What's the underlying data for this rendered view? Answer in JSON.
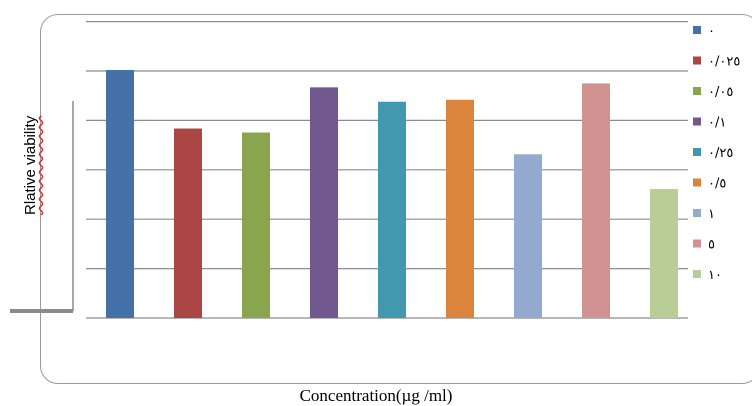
{
  "chart_data": {
    "type": "bar",
    "title": "",
    "xlabel": "Concentration(µg /ml)",
    "ylabel": "Rlative viability",
    "ylim": [
      0,
      5
    ],
    "grid": true,
    "legend_position": "right",
    "categories": [
      "٠",
      "٠/٠٢٥",
      "٠/٠٥",
      "٠/١",
      "٠/٢٥",
      "٠/٥",
      "١",
      "٥",
      "١٠"
    ],
    "values": [
      5.0,
      3.82,
      3.74,
      4.65,
      4.36,
      4.4,
      3.3,
      4.73,
      2.6
    ],
    "colors": [
      "#4472A8",
      "#AA4644",
      "#89A54E",
      "#71588F",
      "#4198AF",
      "#DB843D",
      "#93A9CF",
      "#D19392",
      "#B9CD96"
    ]
  }
}
